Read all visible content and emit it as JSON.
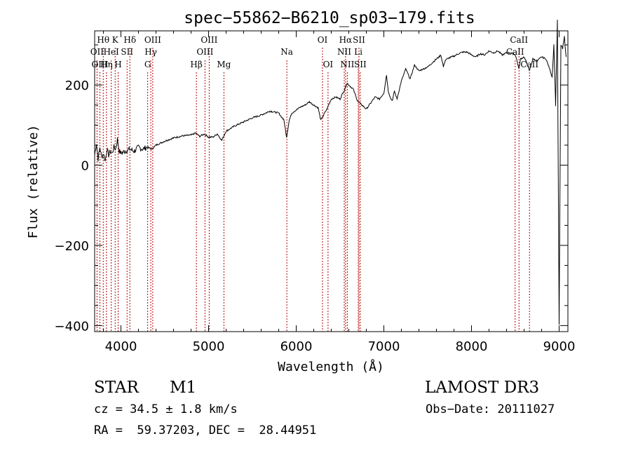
{
  "chart_data": {
    "type": "line",
    "title": "spec−55862−B6210_sp03−179.fits",
    "xlabel": "Wavelength (Å)",
    "ylabel": "Flux (relative)",
    "xlim": [
      3700,
      9100
    ],
    "ylim": [
      -415,
      335
    ],
    "xticks": [
      4000,
      5000,
      6000,
      7000,
      8000,
      9000
    ],
    "yticks": [
      -400,
      -200,
      0,
      200
    ],
    "line_color": "#000000",
    "marker_color": "#b40000",
    "series": [
      {
        "name": "flux",
        "x": [
          3700,
          3720,
          3740,
          3760,
          3780,
          3800,
          3820,
          3840,
          3860,
          3880,
          3900,
          3920,
          3940,
          3960,
          3980,
          4000,
          4050,
          4100,
          4150,
          4200,
          4250,
          4300,
          4350,
          4400,
          4450,
          4500,
          4600,
          4700,
          4800,
          4850,
          4900,
          4950,
          5000,
          5050,
          5100,
          5150,
          5200,
          5300,
          5400,
          5500,
          5600,
          5700,
          5800,
          5860,
          5890,
          5920,
          5950,
          6000,
          6050,
          6100,
          6150,
          6200,
          6250,
          6280,
          6300,
          6350,
          6400,
          6450,
          6500,
          6550,
          6580,
          6600,
          6650,
          6700,
          6750,
          6800,
          6850,
          6900,
          6950,
          7000,
          7030,
          7050,
          7080,
          7100,
          7120,
          7150,
          7200,
          7250,
          7300,
          7350,
          7400,
          7450,
          7500,
          7550,
          7600,
          7630,
          7650,
          7680,
          7700,
          7750,
          7800,
          7850,
          7900,
          7950,
          8000,
          8050,
          8100,
          8150,
          8200,
          8250,
          8300,
          8350,
          8400,
          8450,
          8500,
          8520,
          8540,
          8560,
          8600,
          8640,
          8660,
          8700,
          8750,
          8800,
          8850,
          8900,
          8920,
          8940,
          8960,
          8980,
          9000,
          9020,
          9040,
          9060,
          9080
        ],
        "y": [
          25,
          55,
          15,
          45,
          20,
          30,
          10,
          40,
          25,
          35,
          30,
          45,
          40,
          65,
          35,
          30,
          35,
          40,
          35,
          45,
          40,
          45,
          40,
          50,
          55,
          60,
          68,
          73,
          75,
          80,
          72,
          78,
          70,
          70,
          78,
          62,
          85,
          98,
          108,
          118,
          125,
          135,
          130,
          112,
          70,
          112,
          130,
          138,
          145,
          150,
          158,
          150,
          143,
          112,
          120,
          140,
          165,
          170,
          165,
          188,
          205,
          200,
          190,
          160,
          150,
          140,
          155,
          170,
          165,
          180,
          225,
          185,
          165,
          162,
          185,
          165,
          210,
          240,
          215,
          250,
          235,
          240,
          245,
          255,
          265,
          270,
          275,
          245,
          262,
          268,
          272,
          278,
          282,
          282,
          275,
          270,
          278,
          275,
          285,
          280,
          285,
          275,
          280,
          280,
          275,
          260,
          240,
          265,
          270,
          250,
          235,
          265,
          260,
          270,
          265,
          235,
          220,
          300,
          150,
          360,
          -400,
          300,
          290,
          320,
          270
        ]
      }
    ],
    "lines": [
      {
        "label": "Hθ",
        "wl": 3798,
        "row": 0
      },
      {
        "label": "OII",
        "wl": 3727,
        "row": 1
      },
      {
        "label": "OIII",
        "wl": 3760,
        "row": 2
      },
      {
        "label": "K",
        "wl": 3934,
        "row": 0
      },
      {
        "label": "HeI",
        "wl": 3889,
        "row": 1
      },
      {
        "label": "Hη",
        "wl": 3835,
        "row": 2
      },
      {
        "label": "SII",
        "wl": 4070,
        "row": 1
      },
      {
        "label": "H",
        "wl": 3968,
        "row": 2
      },
      {
        "label": "Hδ",
        "wl": 4102,
        "row": 0
      },
      {
        "label": "OIII",
        "wl": 4363,
        "row": 0
      },
      {
        "label": "Hγ",
        "wl": 4341,
        "row": 1
      },
      {
        "label": "G",
        "wl": 4305,
        "row": 2
      },
      {
        "label": "OIII",
        "wl": 5007,
        "row": 0
      },
      {
        "label": "OIII",
        "wl": 4959,
        "row": 1
      },
      {
        "label": "Hβ",
        "wl": 4861,
        "row": 2
      },
      {
        "label": "Mg",
        "wl": 5175,
        "row": 2
      },
      {
        "label": "Na",
        "wl": 5893,
        "row": 1
      },
      {
        "label": "OI",
        "wl": 6300,
        "row": 0
      },
      {
        "label": "OI",
        "wl": 6363,
        "row": 2
      },
      {
        "label": "Hα",
        "wl": 6563,
        "row": 0
      },
      {
        "label": "SII",
        "wl": 6716,
        "row": 0
      },
      {
        "label": "NII",
        "wl": 6548,
        "row": 1
      },
      {
        "label": "Li",
        "wl": 6708,
        "row": 1
      },
      {
        "label": "NII",
        "wl": 6583,
        "row": 2
      },
      {
        "label": "SII",
        "wl": 6731,
        "row": 2
      },
      {
        "label": "CaII",
        "wl": 8542,
        "row": 0
      },
      {
        "label": "CaII",
        "wl": 8498,
        "row": 1
      },
      {
        "label": "CaII",
        "wl": 8662,
        "row": 2
      }
    ]
  },
  "info": {
    "object_class": "STAR",
    "subclass": "M1",
    "survey": "LAMOST DR3",
    "cz": "cz = 34.5 ± 1.8 km/s",
    "obs_date": "Obs−Date: 20111027",
    "coords": "RA =  59.37203, DEC =  28.44951"
  }
}
